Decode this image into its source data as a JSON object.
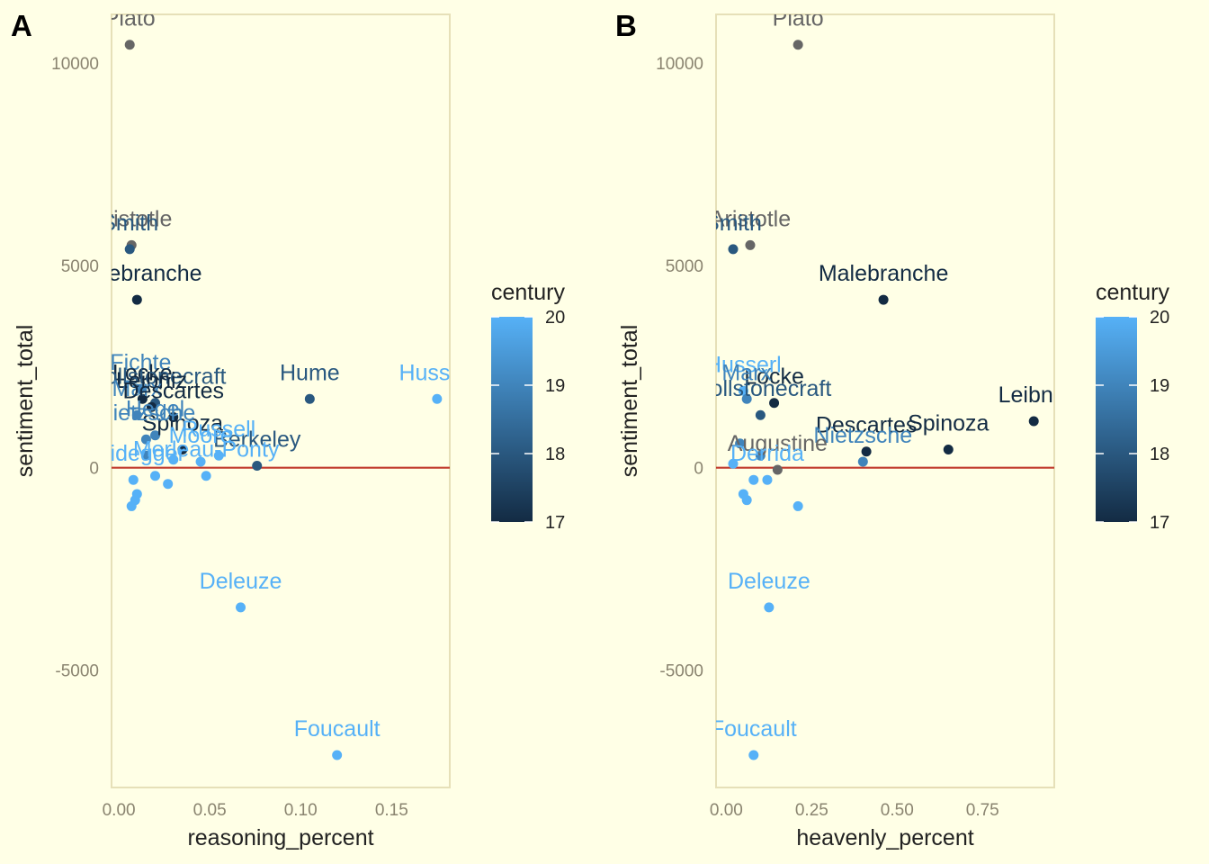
{
  "legend": {
    "title": "century",
    "ticks": [
      20,
      19,
      18,
      17
    ],
    "color_low": "#132b43",
    "color_high": "#56b1f7"
  },
  "colors": {
    "background": "#ffffe6",
    "panel_border": "#e6e0b8",
    "zero_line": "#c0392b",
    "no_century": "#666666"
  },
  "chart_data": [
    {
      "panel_tag": "A",
      "type": "scatter",
      "xlabel": "reasoning_percent",
      "ylabel": "sentiment_total",
      "xlim": [
        -0.004,
        0.182
      ],
      "ylim": [
        -7900,
        11200
      ],
      "x_ticks": [
        {
          "value": 0.0,
          "label": "0.00"
        },
        {
          "value": 0.05,
          "label": "0.05"
        },
        {
          "value": 0.1,
          "label": "0.10"
        },
        {
          "value": 0.15,
          "label": "0.15"
        }
      ],
      "y_ticks": [
        {
          "value": 10000,
          "label": "10000"
        },
        {
          "value": 5000,
          "label": "5000"
        },
        {
          "value": 0,
          "label": "0"
        },
        {
          "value": -5000,
          "label": "-5000"
        }
      ],
      "hline": 0,
      "points": [
        {
          "label": "Plato",
          "x": 0.006,
          "y": 10450,
          "century": null
        },
        {
          "label": "Aristotle",
          "x": 0.007,
          "y": 5500,
          "century": null
        },
        {
          "label": "Smith",
          "x": 0.006,
          "y": 5400,
          "century": 18
        },
        {
          "label": "Malebranche",
          "x": 0.01,
          "y": 4150,
          "century": 17
        },
        {
          "label": "Hume",
          "x": 0.105,
          "y": 1700,
          "century": 18
        },
        {
          "label": "Husserl",
          "x": 0.175,
          "y": 1700,
          "century": 20
        },
        {
          "label": "Fichte",
          "x": 0.012,
          "y": 1950,
          "century": 19
        },
        {
          "label": "Locke",
          "x": 0.013,
          "y": 1700,
          "century": 17
        },
        {
          "label": "Wollstonecraft",
          "x": 0.02,
          "y": 1600,
          "century": 18
        },
        {
          "label": "Leibniz",
          "x": 0.018,
          "y": 1500,
          "century": 17
        },
        {
          "label": "Marx",
          "x": 0.01,
          "y": 1300,
          "century": 19
        },
        {
          "label": "Spinoza",
          "x": 0.035,
          "y": 450,
          "century": 17
        },
        {
          "label": "Descartes",
          "x": 0.03,
          "y": 1250,
          "century": 17
        },
        {
          "label": "Berkeley",
          "x": 0.076,
          "y": 50,
          "century": 18
        },
        {
          "label": "Nietzsche",
          "x": 0.015,
          "y": 700,
          "century": 19
        },
        {
          "label": "Hegel",
          "x": 0.02,
          "y": 800,
          "century": 19
        },
        {
          "label": "Russell",
          "x": 0.055,
          "y": 300,
          "century": 20
        },
        {
          "label": "Moore",
          "x": 0.045,
          "y": 150,
          "century": 20
        },
        {
          "label": "Merleau-Ponty",
          "x": 0.048,
          "y": -200,
          "century": 20
        },
        {
          "label": "Heidegger",
          "x": 0.008,
          "y": -300,
          "century": 20
        },
        {
          "label": "Deleuze",
          "x": 0.067,
          "y": -3450,
          "century": 20
        },
        {
          "label": "Foucault",
          "x": 0.12,
          "y": -7100,
          "century": 20
        }
      ],
      "extra_points": [
        {
          "x": 0.01,
          "y": -650,
          "century": 20
        },
        {
          "x": 0.009,
          "y": -800,
          "century": 20
        },
        {
          "x": 0.007,
          "y": -950,
          "century": 20
        },
        {
          "x": 0.027,
          "y": -400,
          "century": 20
        },
        {
          "x": 0.02,
          "y": -200,
          "century": 20
        },
        {
          "x": 0.03,
          "y": 200,
          "century": 20
        },
        {
          "x": 0.015,
          "y": 300,
          "century": 19
        }
      ]
    },
    {
      "panel_tag": "B",
      "type": "scatter",
      "xlabel": "heavenly_percent",
      "ylabel": "sentiment_total",
      "xlim": [
        -0.03,
        0.96
      ],
      "ylim": [
        -7900,
        11200
      ],
      "x_ticks": [
        {
          "value": 0.0,
          "label": "0.00"
        },
        {
          "value": 0.25,
          "label": "0.25"
        },
        {
          "value": 0.5,
          "label": "0.50"
        },
        {
          "value": 0.75,
          "label": "0.75"
        }
      ],
      "y_ticks": [
        {
          "value": 10000,
          "label": "10000"
        },
        {
          "value": 5000,
          "label": "5000"
        },
        {
          "value": 0,
          "label": "0"
        },
        {
          "value": -5000,
          "label": "-5000"
        }
      ],
      "hline": 0,
      "points": [
        {
          "label": "Plato",
          "x": 0.21,
          "y": 10450,
          "century": null
        },
        {
          "label": "Aristotle",
          "x": 0.07,
          "y": 5500,
          "century": null
        },
        {
          "label": "Smith",
          "x": 0.02,
          "y": 5400,
          "century": 18
        },
        {
          "label": "Malebranche",
          "x": 0.46,
          "y": 4150,
          "century": 17
        },
        {
          "label": "Leibniz",
          "x": 0.9,
          "y": 1150,
          "century": 17
        },
        {
          "label": "Spinoza",
          "x": 0.65,
          "y": 450,
          "century": 17
        },
        {
          "label": "Descartes",
          "x": 0.41,
          "y": 400,
          "century": 17
        },
        {
          "label": "Nietzsche",
          "x": 0.4,
          "y": 150,
          "century": 19
        },
        {
          "label": "Locke",
          "x": 0.14,
          "y": 1600,
          "century": 17
        },
        {
          "label": "Wollstonecraft",
          "x": 0.1,
          "y": 1300,
          "century": 18
        },
        {
          "label": "Husserl",
          "x": 0.05,
          "y": 1900,
          "century": 20
        },
        {
          "label": "Marx",
          "x": 0.06,
          "y": 1700,
          "century": 19
        },
        {
          "label": "Augustine",
          "x": 0.15,
          "y": -50,
          "century": null
        },
        {
          "label": "Derrida",
          "x": 0.12,
          "y": -300,
          "century": 20
        },
        {
          "label": "Deleuze",
          "x": 0.125,
          "y": -3450,
          "century": 20
        },
        {
          "label": "Foucault",
          "x": 0.08,
          "y": -7100,
          "century": 20
        }
      ],
      "extra_points": [
        {
          "x": 0.21,
          "y": -950,
          "century": 20
        },
        {
          "x": 0.05,
          "y": -650,
          "century": 20
        },
        {
          "x": 0.06,
          "y": -800,
          "century": 20
        },
        {
          "x": 0.08,
          "y": -300,
          "century": 20
        },
        {
          "x": 0.02,
          "y": 100,
          "century": 20
        },
        {
          "x": 0.1,
          "y": 300,
          "century": 19
        },
        {
          "x": 0.04,
          "y": 600,
          "century": 19
        }
      ]
    }
  ]
}
